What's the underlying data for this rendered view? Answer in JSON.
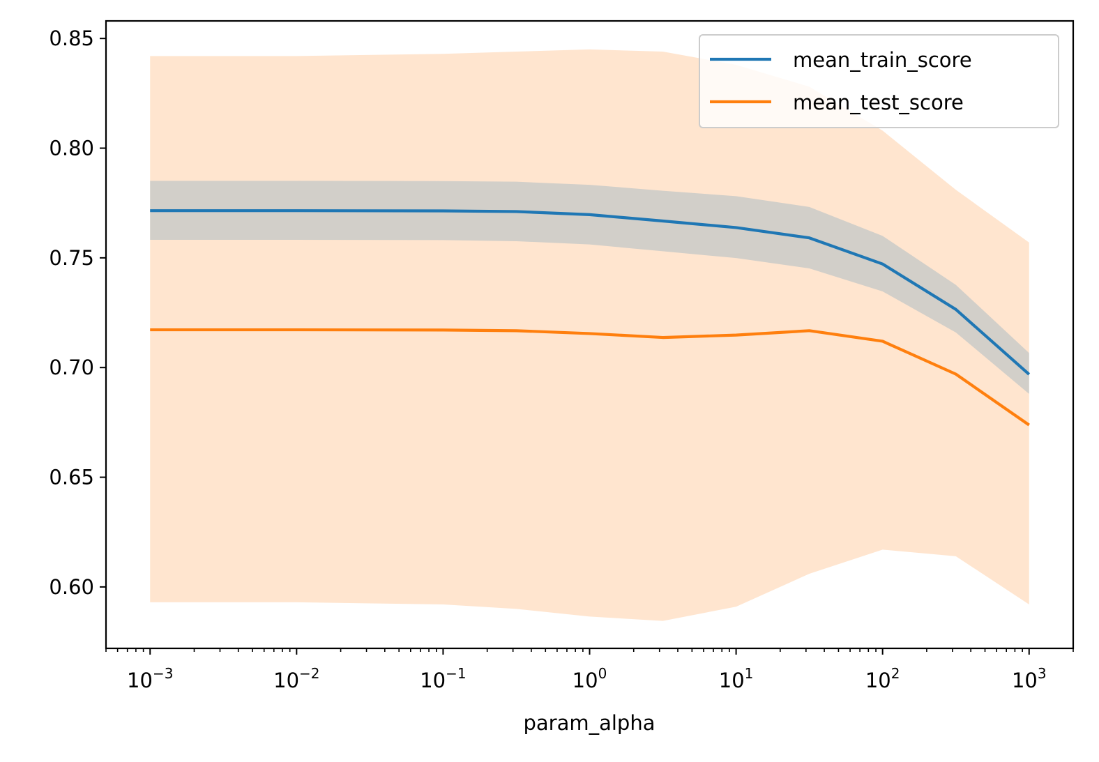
{
  "chart_data": {
    "type": "line",
    "xlabel": "param_alpha",
    "ylabel": "",
    "xscale": "log",
    "xlim": [
      0.0005,
      2000
    ],
    "ylim": [
      0.572,
      0.858
    ],
    "xticks": [
      {
        "value": 0.001,
        "base": "10",
        "exp": "−3"
      },
      {
        "value": 0.01,
        "base": "10",
        "exp": "−2"
      },
      {
        "value": 0.1,
        "base": "10",
        "exp": "−1"
      },
      {
        "value": 1,
        "base": "10",
        "exp": "0"
      },
      {
        "value": 10,
        "base": "10",
        "exp": "1"
      },
      {
        "value": 100,
        "base": "10",
        "exp": "2"
      },
      {
        "value": 1000,
        "base": "10",
        "exp": "3"
      }
    ],
    "yticks": [
      {
        "value": 0.6,
        "label": "0.60"
      },
      {
        "value": 0.65,
        "label": "0.65"
      },
      {
        "value": 0.7,
        "label": "0.70"
      },
      {
        "value": 0.75,
        "label": "0.75"
      },
      {
        "value": 0.8,
        "label": "0.80"
      },
      {
        "value": 0.85,
        "label": "0.85"
      }
    ],
    "x": [
      0.001,
      0.01,
      0.1,
      0.3162,
      1,
      3.162,
      10,
      31.62,
      100,
      316.2,
      1000
    ],
    "series": [
      {
        "name": "mean_train_score",
        "color": "#1f77b4",
        "values": [
          0.7715,
          0.7715,
          0.7714,
          0.7711,
          0.7697,
          0.7668,
          0.7638,
          0.7591,
          0.7472,
          0.7265,
          0.6969
        ],
        "band_upper": [
          0.7851,
          0.7851,
          0.785,
          0.7847,
          0.7833,
          0.7806,
          0.7781,
          0.7732,
          0.76,
          0.7377,
          0.7066
        ],
        "band_lower": [
          0.7582,
          0.7582,
          0.7581,
          0.7576,
          0.7561,
          0.753,
          0.7499,
          0.7452,
          0.7347,
          0.716,
          0.688
        ],
        "band_color": "#1f77b4"
      },
      {
        "name": "mean_test_score",
        "color": "#ff7f0e",
        "values": [
          0.7172,
          0.7172,
          0.7171,
          0.7168,
          0.7155,
          0.7137,
          0.7148,
          0.7168,
          0.712,
          0.697,
          0.6738
        ],
        "band_upper": [
          0.842,
          0.842,
          0.843,
          0.844,
          0.845,
          0.844,
          0.838,
          0.828,
          0.808,
          0.781,
          0.757
        ],
        "band_lower": [
          0.593,
          0.593,
          0.592,
          0.59,
          0.5865,
          0.5845,
          0.591,
          0.606,
          0.617,
          0.614,
          0.592
        ],
        "band_color": "#ff7f0e"
      }
    ],
    "legend": {
      "placement": "top-right",
      "entries": [
        "mean_train_score",
        "mean_test_score"
      ]
    }
  }
}
